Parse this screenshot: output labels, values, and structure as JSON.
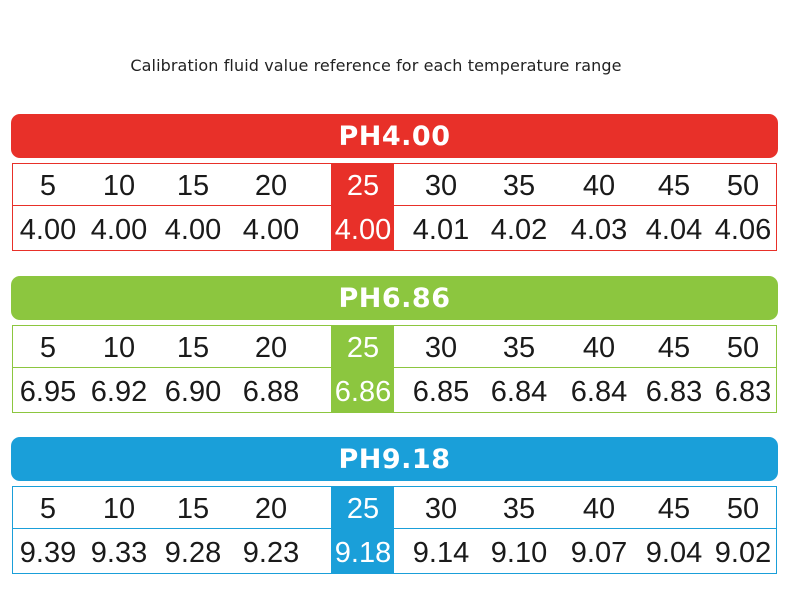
{
  "caption": "Calibration fluid value reference for each temperature range",
  "temperatures": [
    "5",
    "10",
    "15",
    "20",
    "25",
    "30",
    "35",
    "40",
    "45",
    "50"
  ],
  "blocks": [
    {
      "title": "PH4.00",
      "color": "#e83029",
      "values": [
        "4.00",
        "4.00",
        "4.00",
        "4.00",
        "4.00",
        "4.01",
        "4.02",
        "4.03",
        "4.04",
        "4.06"
      ]
    },
    {
      "title": "PH6.86",
      "color": "#8cc63f",
      "values": [
        "6.95",
        "6.92",
        "6.90",
        "6.88",
        "6.86",
        "6.85",
        "6.84",
        "6.84",
        "6.83",
        "6.83"
      ]
    },
    {
      "title": "PH9.18",
      "color": "#1a9fd9",
      "values": [
        "9.39",
        "9.33",
        "9.28",
        "9.23",
        "9.18",
        "9.14",
        "9.10",
        "9.07",
        "9.04",
        "9.02"
      ]
    }
  ],
  "highlight_index": 4
}
